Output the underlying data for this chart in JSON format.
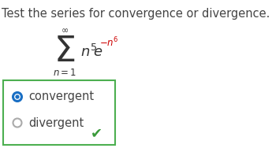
{
  "title": "Test the series for convergence or divergence.",
  "title_color": "#444444",
  "title_fontsize": 10.5,
  "bg_color": "#ffffff",
  "sigma_fontsize": 32,
  "formula_fontsize": 13,
  "sup_color": "#cc0000",
  "base_color": "#333333",
  "option1": "convergent",
  "option2": "divergent",
  "option_fontsize": 10.5,
  "option_color": "#444444",
  "box_edge_color": "#4CAF50",
  "selected_color": "#1a6fc4",
  "unselected_color": "#aaaaaa",
  "checkmark_color": "#3a9a3a"
}
